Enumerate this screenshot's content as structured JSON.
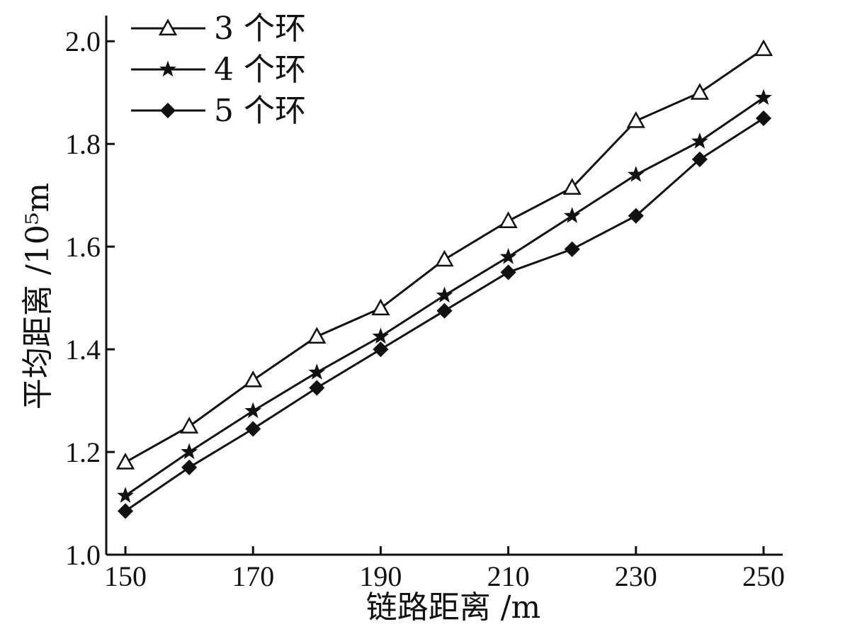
{
  "chart_data": {
    "type": "line",
    "xlabel": "链路距离 /m",
    "ylabel": "平均距离 /10⁵m",
    "xlim": [
      147,
      253
    ],
    "ylim": [
      1.0,
      2.05
    ],
    "xticks": [
      150,
      170,
      190,
      210,
      230,
      250
    ],
    "yticks": [
      1.0,
      1.2,
      1.4,
      1.6,
      1.8,
      2.0
    ],
    "ytick_labels": [
      "1.0",
      "1.2",
      "1.4",
      "1.6",
      "1.8",
      "2.0"
    ],
    "grid": false,
    "legend_position": "top-left",
    "x": [
      150,
      160,
      170,
      180,
      190,
      200,
      210,
      220,
      230,
      240,
      250
    ],
    "series": [
      {
        "name": "3 个环",
        "marker": "open-triangle",
        "values": [
          1.18,
          1.25,
          1.34,
          1.425,
          1.48,
          1.575,
          1.65,
          1.715,
          1.845,
          1.9,
          1.985
        ]
      },
      {
        "name": "4 个环",
        "marker": "star",
        "values": [
          1.115,
          1.2,
          1.28,
          1.355,
          1.425,
          1.505,
          1.58,
          1.66,
          1.74,
          1.805,
          1.89
        ]
      },
      {
        "name": "5 个环",
        "marker": "filled-diamond",
        "values": [
          1.085,
          1.17,
          1.245,
          1.325,
          1.4,
          1.475,
          1.55,
          1.595,
          1.66,
          1.77,
          1.85
        ]
      }
    ]
  }
}
